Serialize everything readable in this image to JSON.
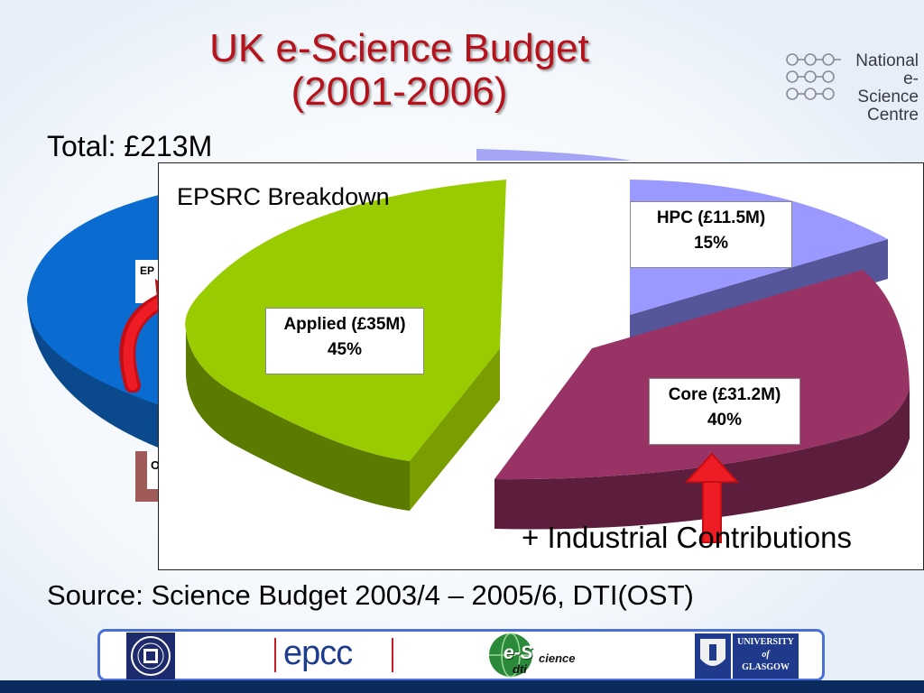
{
  "slide": {
    "title_line1": "UK e-Science Budget",
    "title_line2": "(2001-2006)",
    "total": "Total: £213M",
    "background_chart_label_fragments": [
      "EP",
      "O"
    ],
    "industrial_note": "+ Industrial Contributions",
    "source": "Source: Science Budget 2003/4 – 2005/6, DTI(OST)"
  },
  "logos": {
    "nesc_lines": [
      "National",
      "e-Science",
      "Centre"
    ],
    "epcc": "epcc",
    "escience_prefix": "e-S",
    "escience_suffix": "cience",
    "dti": "dti",
    "glasgow_lines": [
      "UNIVERSITY",
      "of",
      "GLASGOW"
    ]
  },
  "colors": {
    "title": "#b5121b",
    "applied": "#99cc00",
    "core": "#993366",
    "hpc": "#9999ff",
    "background_pie": "#0066cc",
    "arrow": "#e8101a",
    "footer_border": "#4a6fd8"
  },
  "chart_data": {
    "type": "pie",
    "title": "EPSRC Breakdown",
    "slices": [
      {
        "name": "Applied",
        "value_label": "Applied (£35M)",
        "value": 35,
        "percent": 45,
        "percent_label": "45%"
      },
      {
        "name": "Core",
        "value_label": "Core (£31.2M)",
        "value": 31.2,
        "percent": 40,
        "percent_label": "40%"
      },
      {
        "name": "HPC",
        "value_label": "HPC (£11.5M)",
        "value": 11.5,
        "percent": 15,
        "percent_label": "15%"
      }
    ]
  }
}
